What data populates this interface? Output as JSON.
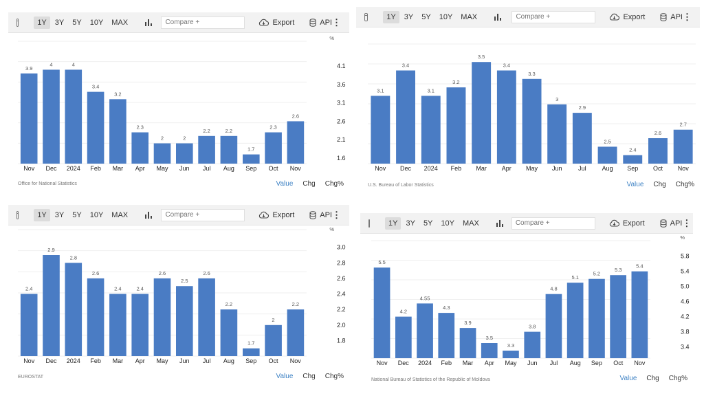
{
  "toolbar": {
    "ranges": [
      "1Y",
      "3Y",
      "5Y",
      "10Y",
      "MAX"
    ],
    "active_range": "1Y",
    "compare_placeholder": "Compare +",
    "export_label": "Export",
    "api_label": "API",
    "more_icon": "⋮"
  },
  "toggle_labels": [
    "Value",
    "Chg",
    "Chg%"
  ],
  "accent_color": "#3e82c4",
  "bar_color": "#4a7cc4",
  "chart_data": [
    {
      "type": "bar",
      "categories": [
        "Nov",
        "Dec",
        "2024",
        "Feb",
        "Mar",
        "Apr",
        "May",
        "Jun",
        "Jul",
        "Aug",
        "Sep",
        "Oct",
        "Nov"
      ],
      "values": [
        3.9,
        4,
        4,
        3.4,
        3.2,
        2.3,
        2,
        2,
        2.2,
        2.2,
        1.7,
        2.3,
        2.6
      ],
      "value_labels": [
        "3.9",
        "4",
        "4",
        "3.4",
        "3.2",
        "2.3",
        "2",
        "2",
        "2.2",
        "2.2",
        "1.7",
        "2.3",
        "2.6"
      ],
      "yticks": [
        "4.1",
        "3.6",
        "3.1",
        "2.6",
        "2.1",
        "1.6"
      ],
      "ylim": [
        1.45,
        4.4
      ],
      "unit": "%",
      "source": "Office for National Statistics"
    },
    {
      "type": "bar",
      "categories": [
        "Nov",
        "Dec",
        "2024",
        "Feb",
        "Mar",
        "Apr",
        "May",
        "Jun",
        "Jul",
        "Aug",
        "Sep",
        "Oct",
        "Nov"
      ],
      "values": [
        3.1,
        3.4,
        3.1,
        3.2,
        3.5,
        3.4,
        3.3,
        3,
        2.9,
        2.5,
        2.4,
        2.6,
        2.7
      ],
      "value_labels": [
        "3.1",
        "3.4",
        "3.1",
        "3.2",
        "3.5",
        "3.4",
        "3.3",
        "3",
        "2.9",
        "2.5",
        "2.4",
        "2.6",
        "2.7"
      ],
      "yticks": [],
      "ylim": [
        2.3,
        3.55
      ],
      "unit": "",
      "source": "U.S. Bureau of Labor Statistics"
    },
    {
      "type": "bar",
      "categories": [
        "Nov",
        "Dec",
        "2024",
        "Feb",
        "Mar",
        "Apr",
        "May",
        "Jun",
        "Jul",
        "Aug",
        "Sep",
        "Oct",
        "Nov"
      ],
      "values": [
        2.4,
        2.9,
        2.8,
        2.6,
        2.4,
        2.4,
        2.6,
        2.5,
        2.6,
        2.2,
        1.7,
        2,
        2.2
      ],
      "value_labels": [
        "2.4",
        "2.9",
        "2.8",
        "2.6",
        "2.4",
        "2.4",
        "2.6",
        "2.5",
        "2.6",
        "2.2",
        "1.7",
        "2",
        "2.2"
      ],
      "yticks": [
        "3.0",
        "2.8",
        "2.6",
        "2.4",
        "2.2",
        "2.0",
        "1.8"
      ],
      "ylim": [
        1.6,
        3.05
      ],
      "unit": "%",
      "source": "EUROSTAT"
    },
    {
      "type": "bar",
      "categories": [
        "Nov",
        "Dec",
        "2024",
        "Feb",
        "Mar",
        "Apr",
        "May",
        "Jun",
        "Jul",
        "Aug",
        "Sep",
        "Oct",
        "Nov"
      ],
      "values": [
        5.5,
        4.2,
        4.55,
        4.3,
        3.9,
        3.5,
        3.3,
        3.8,
        4.8,
        5.1,
        5.2,
        5.3,
        5.4
      ],
      "value_labels": [
        "5.5",
        "4.2",
        "4.55",
        "4.3",
        "3.9",
        "3.5",
        "3.3",
        "3.8",
        "4.8",
        "5.1",
        "5.2",
        "5.3",
        "5.4"
      ],
      "yticks": [
        "5.8",
        "5.4",
        "5.0",
        "4.6",
        "4.2",
        "3.8",
        "3.4"
      ],
      "ylim": [
        3.1,
        5.85
      ],
      "unit": "%",
      "source": "National Bureau of Statistics of the Republic of Moldova"
    }
  ]
}
